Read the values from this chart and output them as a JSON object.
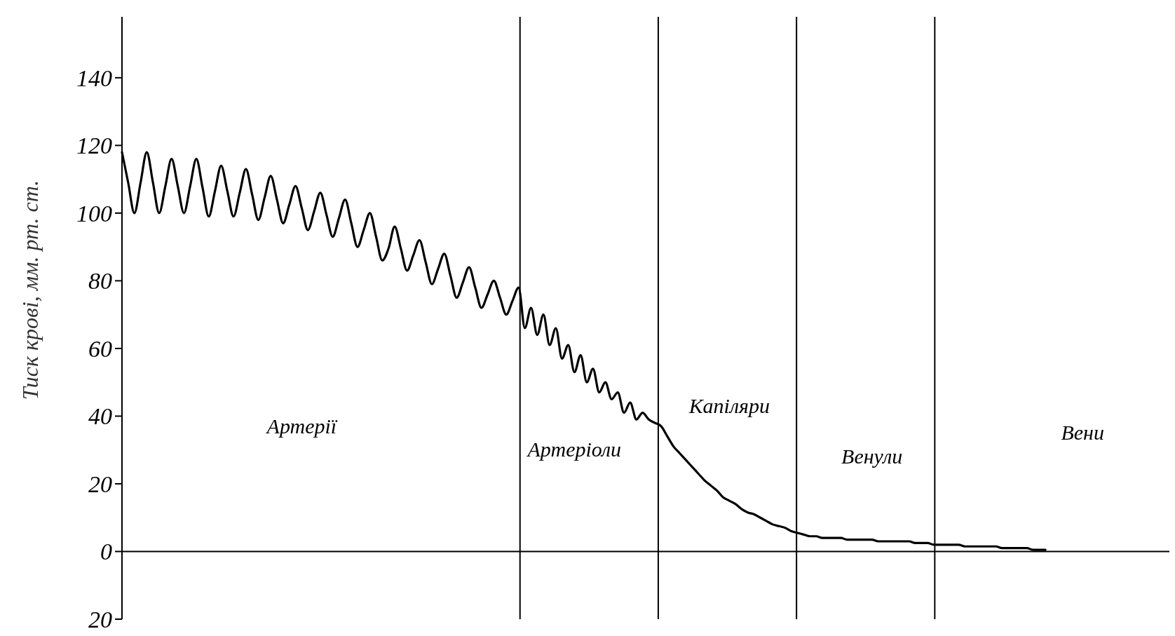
{
  "chart_data": {
    "type": "line",
    "ylabel": "Тиск крові, мм. рт. ст.",
    "ylim": [
      -20,
      158
    ],
    "yticks": [
      {
        "value": -20,
        "label": "20"
      },
      0,
      20,
      40,
      60,
      80,
      100,
      120,
      140
    ],
    "tick_labels": "y",
    "marker": "none",
    "line_style": "solid",
    "categories": [
      null,
      null,
      null,
      null,
      null,
      null,
      null,
      null,
      null,
      null,
      null,
      null,
      null,
      null,
      null,
      null,
      null,
      null,
      null,
      null,
      null,
      null,
      null,
      null,
      null,
      null,
      null,
      null,
      null,
      "Артерії",
      null,
      null,
      null,
      null,
      null,
      null,
      null,
      null,
      null,
      null,
      null,
      null,
      null,
      null,
      null,
      null,
      null,
      null,
      null,
      null,
      null,
      null,
      null,
      null,
      null,
      null,
      null,
      null,
      null,
      null,
      null,
      null,
      null,
      null,
      null,
      null,
      null,
      null,
      null,
      null,
      null,
      null,
      null,
      "Артеріоли",
      null,
      null,
      null,
      null,
      null,
      null,
      null,
      null,
      null,
      null,
      null,
      null,
      null,
      null,
      null,
      null,
      null,
      null,
      null,
      null,
      null,
      null,
      null,
      null,
      "Капіляри",
      null,
      null,
      null,
      null,
      null,
      null,
      null,
      null,
      null,
      null,
      null,
      null,
      null,
      null,
      null,
      null,
      null,
      null,
      null,
      null,
      null,
      null,
      "Венули",
      null,
      null,
      null,
      null,
      null,
      null,
      null,
      null,
      null,
      null,
      null,
      null,
      null,
      null,
      null,
      null,
      null,
      null,
      null,
      null,
      null,
      null,
      null,
      null,
      null,
      null,
      null,
      null,
      null,
      null,
      null,
      null,
      null,
      "Вени",
      null,
      null,
      null,
      null,
      null,
      null,
      null,
      null,
      null,
      null,
      null,
      null,
      null,
      null
    ],
    "series": [
      {
        "color": "#000000",
        "values": [
          118,
          109,
          100,
          109,
          118,
          109,
          100,
          108,
          116,
          108,
          100,
          108,
          116,
          107.5,
          99,
          106.5,
          114,
          106.5,
          99,
          106,
          113,
          105.5,
          98,
          104.5,
          111,
          104,
          97,
          102.5,
          108,
          101.5,
          95,
          100.5,
          106,
          99.5,
          93,
          98.5,
          104,
          97,
          90,
          95,
          100,
          93,
          86,
          89.5,
          96,
          89.5,
          83,
          87.5,
          92,
          85.5,
          79,
          83.5,
          88,
          81.5,
          75,
          79.5,
          84,
          78,
          72,
          76,
          80,
          75,
          70,
          74,
          78,
          66,
          72,
          64,
          70,
          61,
          66,
          57,
          61,
          53,
          58,
          50,
          54,
          47,
          50,
          45,
          47,
          41,
          44,
          39,
          41,
          39,
          38,
          37,
          34,
          31,
          29,
          27,
          25,
          23,
          21,
          19.5,
          18,
          16,
          15,
          14,
          12.5,
          11.5,
          11,
          10,
          9,
          8,
          7.5,
          7,
          6,
          5.5,
          5,
          4.5,
          4.5,
          4,
          4,
          4,
          4,
          3.5,
          3.5,
          3.5,
          3.5,
          3.5,
          3,
          3,
          3,
          3,
          3,
          3,
          2.5,
          2.5,
          2.5,
          2,
          2,
          2,
          2,
          2,
          1.5,
          1.5,
          1.5,
          1.5,
          1.5,
          1.5,
          1,
          1,
          1,
          1,
          1,
          0.5,
          0.5,
          0.5,
          null,
          null,
          null,
          null,
          null,
          null,
          null,
          null,
          null,
          null,
          null,
          null,
          null,
          null,
          null,
          null,
          null,
          null,
          null,
          null
        ]
      }
    ]
  }
}
